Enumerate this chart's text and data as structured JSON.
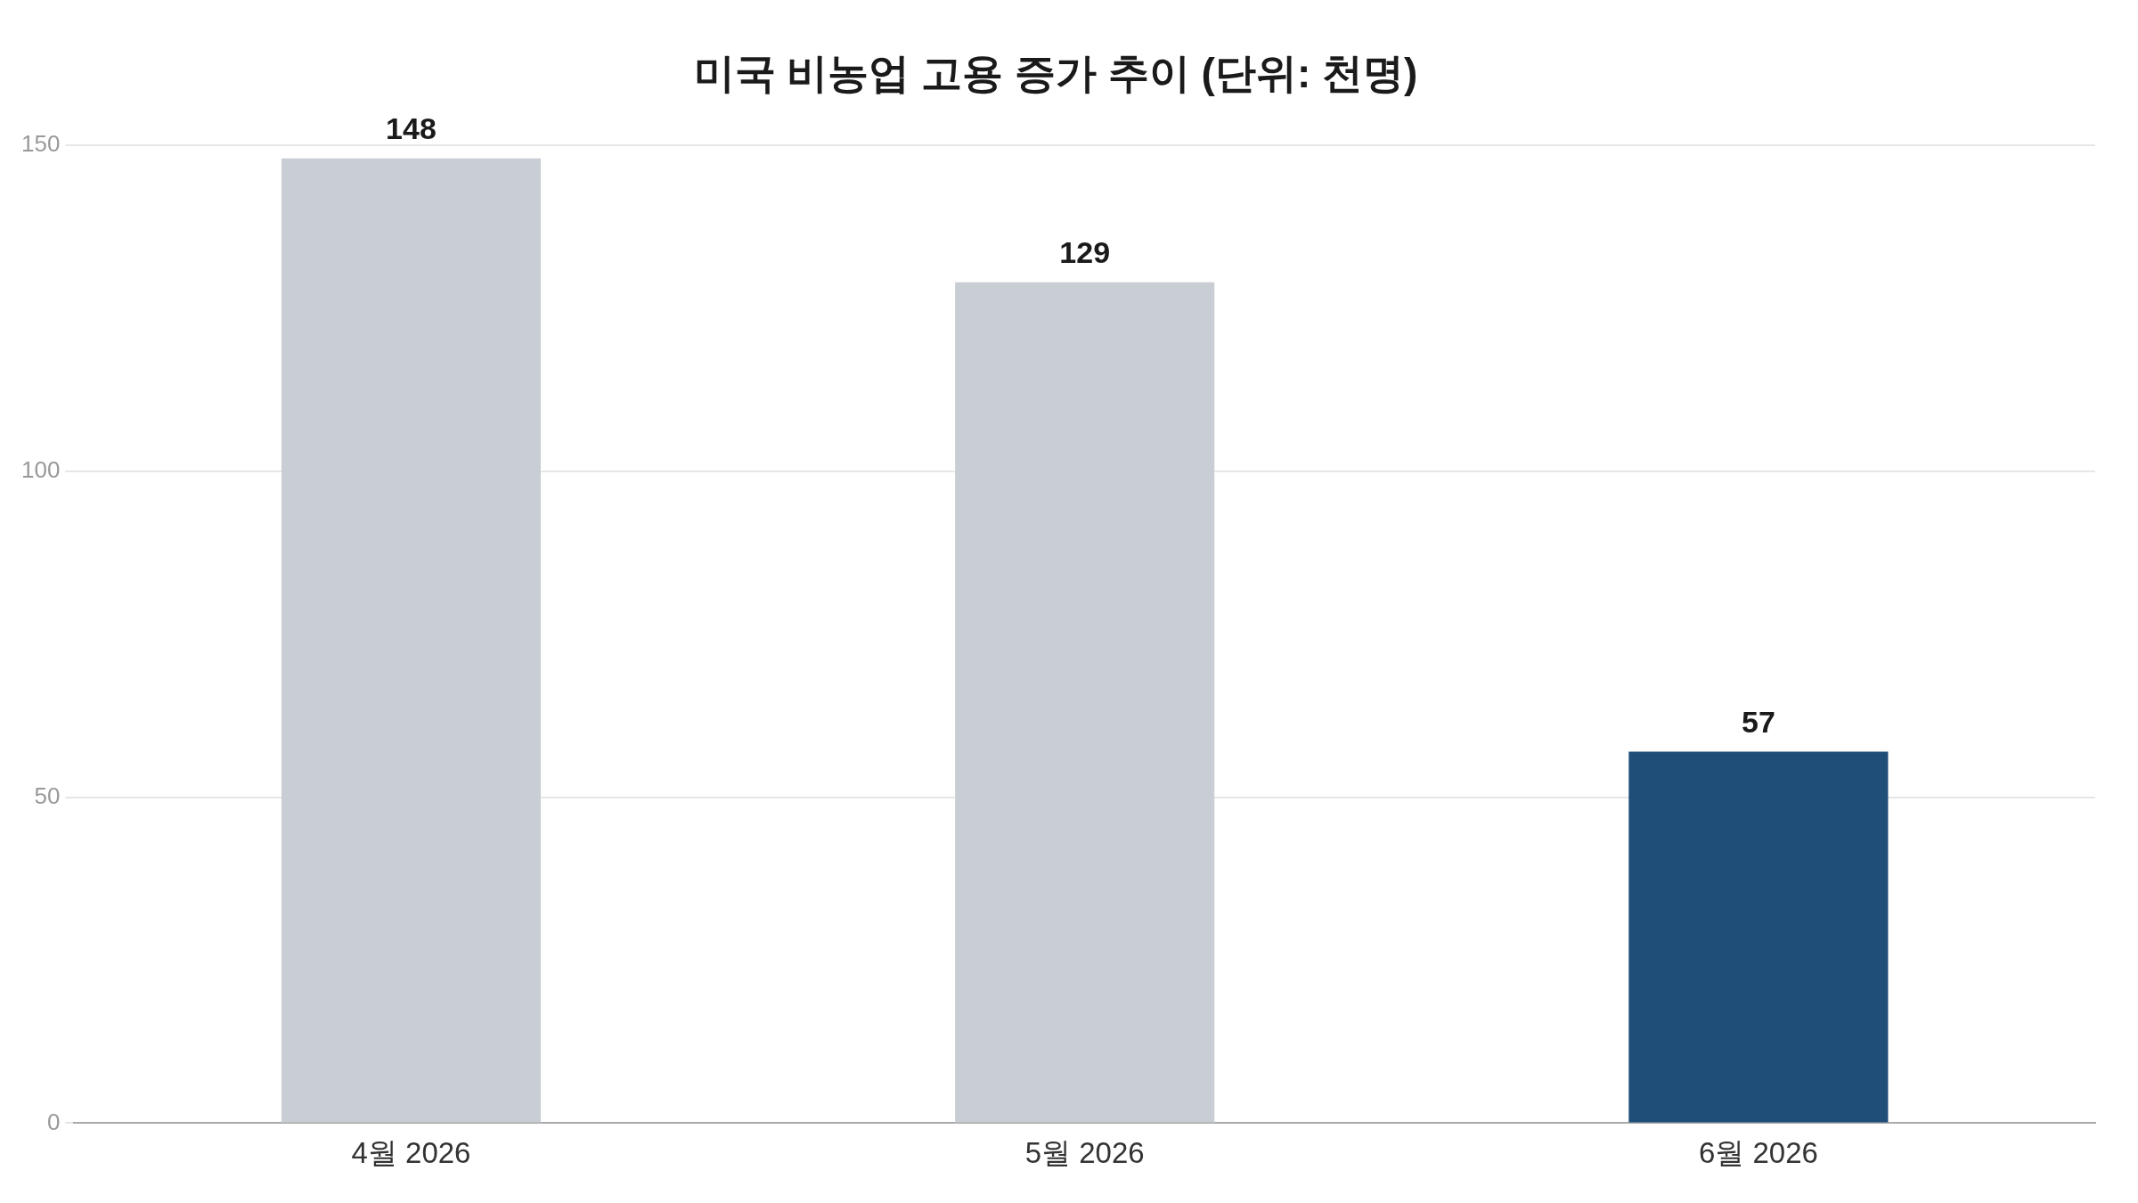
{
  "chart_data": {
    "type": "bar",
    "title": "미국 비농업 고용 증가 추이 (단위: 천명)",
    "categories": [
      "4월 2026",
      "5월 2026",
      "6월 2026"
    ],
    "values": [
      148,
      129,
      57
    ],
    "colors": [
      "#c9cdd4",
      "#c9cdd4",
      "#1f4e79"
    ],
    "ylim": [
      0,
      150
    ],
    "yticks": [
      0,
      50,
      100,
      150
    ],
    "grid": "y",
    "data_labels": true
  }
}
